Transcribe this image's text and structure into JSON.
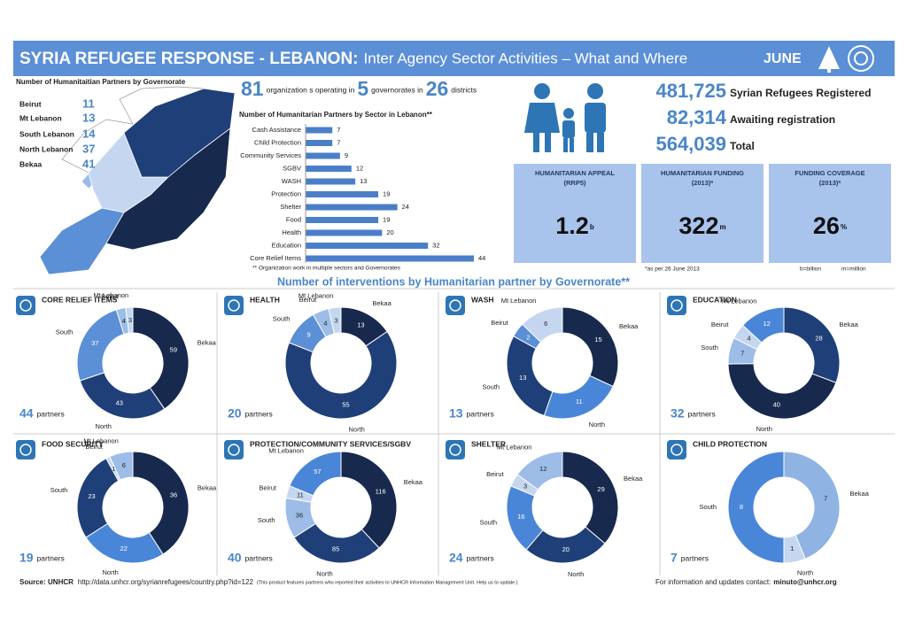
{
  "header": {
    "title": "SYRIA REFUGEE RESPONSE - LEBANON:",
    "subtitle": "Inter Agency Sector Activities – What and Where",
    "month": "JUNE"
  },
  "governorates": {
    "title": "Number of  Humanitaitian Partners by Governorate",
    "rows": [
      {
        "name": "Beirut",
        "value": 11,
        "color": "#9dbde8"
      },
      {
        "name": "Mt Lebanon",
        "value": 13,
        "color": "#c5d7f0"
      },
      {
        "name": "South Lebanon",
        "value": 14,
        "color": "#5b8fd6"
      },
      {
        "name": "North Lebanon",
        "value": 37,
        "color": "#1f3f78"
      },
      {
        "name": "Bekaa",
        "value": 41,
        "color": "#17294d"
      }
    ]
  },
  "summary": {
    "organizations": 81,
    "organizations_text": "organization s operating in",
    "governorates": 5,
    "governorates_text": "governorates in",
    "districts": 26,
    "districts_text": "districts"
  },
  "refugees": [
    {
      "value": "481,725",
      "label": "Syrian Refugees Registered"
    },
    {
      "value": "82,314",
      "label": "Awaiting registration"
    },
    {
      "value": "564,039",
      "label": "Total"
    }
  ],
  "funding": {
    "boxes": [
      {
        "title": "HUMANITARIAN APPEAL",
        "subtitle": "(RRP5)",
        "value": "1.2",
        "unit": "b"
      },
      {
        "title": "HUMANITARIAN FUNDING",
        "subtitle": "(2013)*",
        "value": "322",
        "unit": "m"
      },
      {
        "title": "FUNDING COVERAGE",
        "subtitle": "(2013)*",
        "value": "26",
        "unit": "%"
      }
    ],
    "note": "*as per 26 June 2013",
    "units": [
      "b=billion",
      "m=million"
    ]
  },
  "interventions_title": "Number of interventions by Humanitarian partner by Governorate**",
  "chart_data": [
    {
      "type": "bar",
      "title": "Number of Humanitarian Partners by Sector in Lebanon**",
      "categories": [
        "Cash Assistance",
        "Child Protection",
        "Community Services",
        "SGBV",
        "WASH",
        "Protection",
        "Shelter",
        "Food",
        "Health",
        "Education",
        "Core Relief Items"
      ],
      "values": [
        7,
        7,
        9,
        12,
        13,
        19,
        24,
        19,
        20,
        32,
        44
      ],
      "color": "#4a7fc8",
      "note": "** Organization work in multiple sectors and Governorates"
    },
    {
      "type": "donut",
      "title": "CORE RELIEF ITEMS",
      "partners": 44,
      "partners_label": "partners",
      "categories": [
        "Bekaa",
        "North",
        "South",
        "Beirut",
        "Mt Lebanon"
      ],
      "values": [
        59,
        43,
        37,
        4,
        3
      ],
      "colors": [
        "#17294d",
        "#1f3f78",
        "#5b8fd6",
        "#9dbde8",
        "#c5d7f0"
      ]
    },
    {
      "type": "donut",
      "title": "HEALTH",
      "partners": 20,
      "partners_label": "partners",
      "categories": [
        "Bekaa",
        "North",
        "South",
        "Beirut",
        "Mt Lebanon"
      ],
      "values": [
        13,
        55,
        9,
        4,
        3
      ],
      "colors": [
        "#17294d",
        "#1f3f78",
        "#5b8fd6",
        "#9dbde8",
        "#c5d7f0"
      ]
    },
    {
      "type": "donut",
      "title": "WASH",
      "partners": 13,
      "partners_label": "partners",
      "categories": [
        "Bekaa",
        "North",
        "South",
        "Beirut",
        "Mt Lebanon"
      ],
      "values": [
        15,
        11,
        13,
        2,
        6
      ],
      "colors": [
        "#17294d",
        "#4a86d8",
        "#1f3f78",
        "#5b8fd6",
        "#c5d7f0"
      ]
    },
    {
      "type": "donut",
      "title": "EDUCATION",
      "partners": 32,
      "partners_label": "partners",
      "categories": [
        "Bekaa",
        "North",
        "South",
        "Beirut",
        "Mt Lebanon"
      ],
      "values": [
        28,
        40,
        7,
        4,
        12
      ],
      "colors": [
        "#1f3f78",
        "#17294d",
        "#9dbde8",
        "#c5d7f0",
        "#4a86d8"
      ]
    },
    {
      "type": "donut",
      "title": "FOOD SECURITY",
      "partners": 19,
      "partners_label": "partners",
      "categories": [
        "Bekaa",
        "North",
        "South",
        "Beirut",
        "Mt Lebanon"
      ],
      "values": [
        36,
        22,
        23,
        1,
        6
      ],
      "colors": [
        "#17294d",
        "#4a86d8",
        "#1f3f78",
        "#c5d7f0",
        "#9dbde8"
      ]
    },
    {
      "type": "donut",
      "title": "PROTECTION/COMMUNITY SERVICES/SGBV",
      "partners": 40,
      "partners_label": "partners",
      "categories": [
        "Bekaa",
        "North",
        "South",
        "Beirut",
        "Mt Lebanon"
      ],
      "values": [
        116,
        85,
        36,
        11,
        57
      ],
      "colors": [
        "#17294d",
        "#1f3f78",
        "#9dbde8",
        "#c5d7f0",
        "#4a86d8"
      ]
    },
    {
      "type": "donut",
      "title": "SHELTER",
      "partners": 24,
      "partners_label": "partners",
      "categories": [
        "Bekaa",
        "North",
        "South",
        "Beirut",
        "Mt Lebanon"
      ],
      "values": [
        29,
        20,
        16,
        3,
        12
      ],
      "colors": [
        "#17294d",
        "#1f3f78",
        "#4a86d8",
        "#c5d7f0",
        "#9dbde8"
      ]
    },
    {
      "type": "donut",
      "title": "CHILD PROTECTION",
      "partners": 7,
      "partners_label": "partners",
      "categories": [
        "Bekaa",
        "North",
        "South"
      ],
      "values": [
        7,
        1,
        8
      ],
      "colors": [
        "#8fb4e3",
        "#c5d7f0",
        "#4a86d8"
      ]
    }
  ],
  "footer": {
    "source": "Source: UNHCR",
    "url": "http://data.unhcr.org/syrianrefugees/country.php?id=122",
    "note": "(This product features partners who reported their activities to UNHCR Information Management Unit. Help us to update.)",
    "contact": "For information and updates contact:",
    "email": "minuto@unhcr.org"
  }
}
